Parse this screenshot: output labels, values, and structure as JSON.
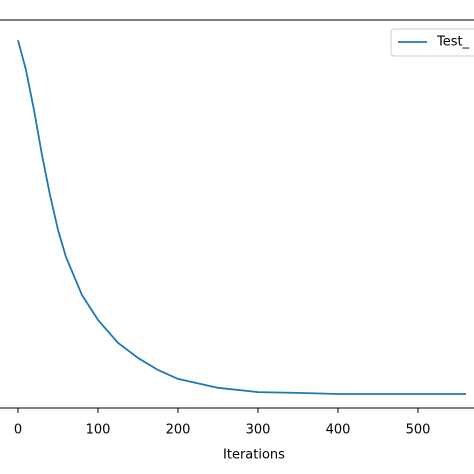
{
  "chart_data": {
    "type": "line",
    "x_label": "Iterations",
    "series": [
      {
        "name": "Test_",
        "color": "#1f77b4",
        "x": [
          0,
          10,
          20,
          30,
          40,
          50,
          60,
          80,
          100,
          125,
          150,
          175,
          200,
          250,
          300,
          350,
          400,
          500,
          560
        ],
        "values": [
          0.948,
          0.871,
          0.768,
          0.652,
          0.549,
          0.459,
          0.389,
          0.291,
          0.227,
          0.168,
          0.129,
          0.098,
          0.075,
          0.052,
          0.041,
          0.039,
          0.036,
          0.036,
          0.036
        ]
      }
    ],
    "xlim": [
      -22.5,
      570
    ],
    "xticks": [
      0,
      100,
      200,
      300,
      400,
      500
    ],
    "ylim": [
      0,
      1
    ],
    "legend": "upper right"
  }
}
